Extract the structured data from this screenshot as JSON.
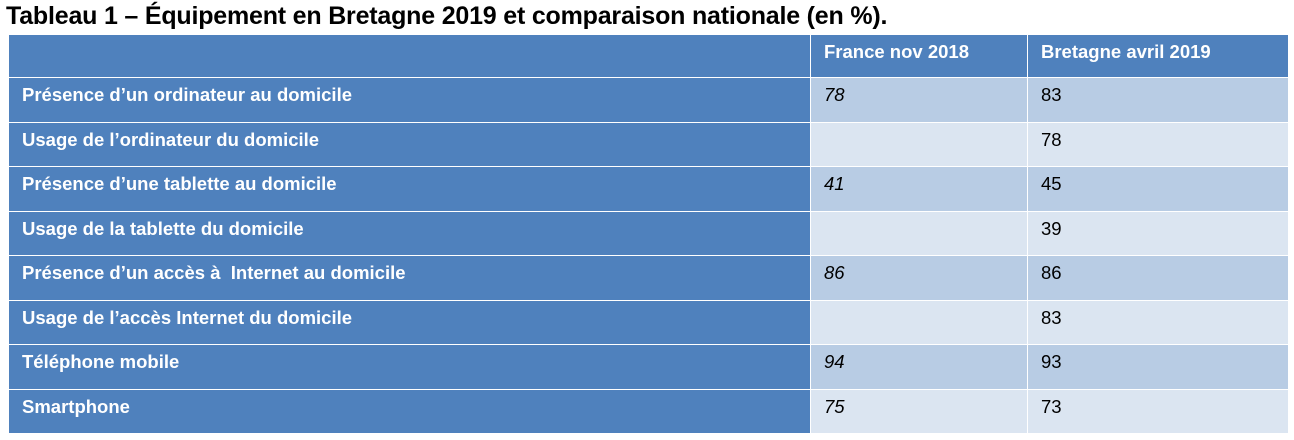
{
  "title": "Tableau 1 – Équipement en Bretagne 2019 et comparaison nationale (en %).",
  "columns": [
    "",
    "France nov 2018",
    "Bretagne avril 2019"
  ],
  "rows": [
    {
      "label": "Présence d’un ordinateur au domicile",
      "france": "78",
      "bretagne": "83"
    },
    {
      "label": "Usage de l’ordinateur du domicile",
      "france": "",
      "bretagne": "78"
    },
    {
      "label": "Présence d’une tablette au domicile",
      "france": "41",
      "bretagne": "45"
    },
    {
      "label": "Usage de la tablette du domicile",
      "france": "",
      "bretagne": "39"
    },
    {
      "label": "Présence d’un accès à  Internet au domicile",
      "france": "86",
      "bretagne": "86"
    },
    {
      "label": "Usage de l’accès Internet du domicile",
      "france": "",
      "bretagne": "83"
    },
    {
      "label": "Téléphone mobile",
      "france": "94",
      "bretagne": "93"
    },
    {
      "label": "Smartphone",
      "france": "75",
      "bretagne": "73"
    }
  ],
  "colors": {
    "header": "#4f81bd",
    "band_odd": "#b8cce4",
    "band_even": "#dbe5f1"
  }
}
